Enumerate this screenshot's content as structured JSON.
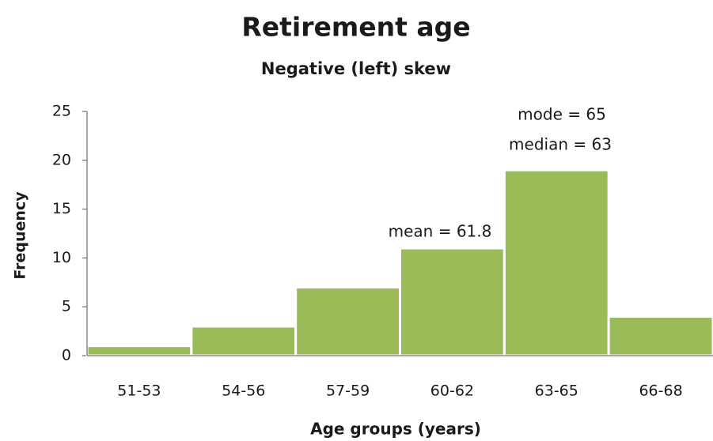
{
  "chart_data": {
    "type": "bar",
    "title": "Retirement age",
    "subtitle": "Negative (left) skew",
    "x_label": "Age groups (years)",
    "y_label": "Frequency",
    "categories": [
      "51-53",
      "54-56",
      "57-59",
      "60-62",
      "63-65",
      "66-68"
    ],
    "values": [
      1,
      3,
      7,
      11,
      19,
      4
    ],
    "color": "#9bbb59",
    "ylim": [
      0,
      25
    ],
    "yticks": [
      0,
      5,
      10,
      15,
      20,
      25
    ],
    "grid": false,
    "annotations": [
      "mode = 65",
      "median = 63",
      "mean = 61.8"
    ]
  }
}
